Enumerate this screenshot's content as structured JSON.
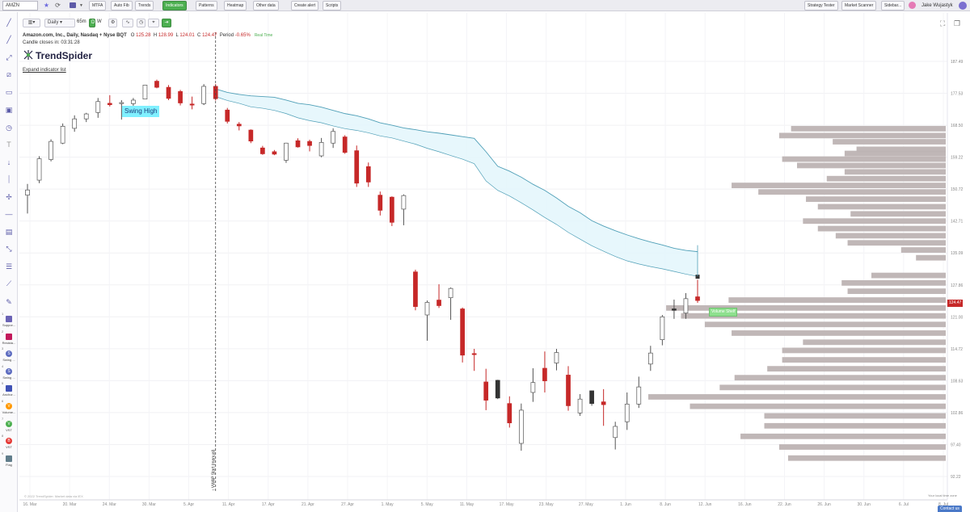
{
  "topbar": {
    "symbol": "AMZN",
    "buttons": [
      "MTFA",
      "Auto Fib",
      "Trends",
      "Indicators",
      "Patterns",
      "Heatmap",
      "Other data",
      "Create alert",
      "Scripts"
    ],
    "right_buttons": [
      "Strategy Tester",
      "Market Scanner",
      "Sidebar..."
    ],
    "user": "Jake Wujastyk",
    "active_button": "Indicators"
  },
  "chart_toolbar": {
    "interval": "Daily",
    "timeframe": "65m",
    "d_label": "D",
    "w_label": "W"
  },
  "info": {
    "name": "Amazon.com, Inc., Daily, Nasdaq + Nyse BQT",
    "open_label": "O",
    "open": "125.28",
    "high_label": "H",
    "high": "128.99",
    "low_label": "L",
    "low": "124.01",
    "close_label": "C",
    "close": "124.47",
    "period_label": "Period",
    "period": "-0.65%",
    "realtime": "Real Time",
    "candle_closes": "Candle closes in: 03:31:28"
  },
  "brand": "TrendSpider",
  "expand_link": "Expand indicator list",
  "annotations": {
    "swing_high": "Swing High",
    "volume_shelf": "Volume Shelf",
    "vwap_label": "↑ VWAP Start (manual)"
  },
  "price_tag": "124.47",
  "footer": {
    "copyright": "© 2022 TrendSpider. Market data via IEX",
    "timezone": "Your local time zone",
    "contact": "Contact us"
  },
  "left_tools": [
    {
      "num": "1",
      "letter": "",
      "label": "Suppor...",
      "color": "#6a62b5"
    },
    {
      "num": "2",
      "letter": "",
      "label": "Resista...",
      "color": "#c2185b"
    },
    {
      "num": "3",
      "letter": "S",
      "label": "Swing ...",
      "color": "#5c6bc0"
    },
    {
      "num": "4",
      "letter": "S",
      "label": "Swing ...",
      "color": "#5c6bc0"
    },
    {
      "num": "5",
      "letter": "",
      "label": "Anchor...",
      "color": "#3f51b5"
    },
    {
      "num": "6",
      "letter": "V",
      "label": "Volume...",
      "color": "#ff9800"
    },
    {
      "num": "7",
      "letter": "V",
      "label": "VST",
      "color": "#4caf50"
    },
    {
      "num": "8",
      "letter": "B",
      "label": "VST",
      "color": "#e53935"
    },
    {
      "num": "9",
      "letter": "",
      "label": "Flag",
      "color": "#607d8b"
    }
  ],
  "colors": {
    "up_candle": "#ffffff",
    "down_candle": "#c62828",
    "wick": "#555555",
    "band_fill": "#e3f6fb",
    "band_line": "#4f9fb7",
    "volume_profile": "#bdb3b3",
    "accent": "#4caf50"
  },
  "chart_data": {
    "type": "candlestick",
    "y_axis_ticks": [
      "187.49",
      "177.53",
      "168.50",
      "159.22",
      "150.72",
      "142.71",
      "135.09",
      "127.86",
      "121.00",
      "114.72",
      "108.63",
      "102.86",
      "97.40",
      "92.22"
    ],
    "x_axis_ticks": [
      "16. Mar",
      "20. Mar",
      "24. Mar",
      "30. Mar",
      "5. Apr",
      "11. Apr",
      "17. Apr",
      "21. Apr",
      "27. Apr",
      "1. May",
      "5. May",
      "11. May",
      "17. May",
      "23. May",
      "27. May",
      "1. Jun",
      "8. Jun",
      "12. Jun",
      "16. Jun",
      "22. Jun",
      "26. Jun",
      "30. Jun",
      "6. Jul",
      "8. Jul"
    ],
    "candles": [
      {
        "o": 150.5,
        "h": 152.1,
        "l": 144.6,
        "c": 149.2,
        "dir": "up"
      },
      {
        "o": 153.1,
        "h": 159.5,
        "l": 152.3,
        "c": 158.8,
        "dir": "up"
      },
      {
        "o": 158.6,
        "h": 164.4,
        "l": 158.1,
        "c": 163.8,
        "dir": "up"
      },
      {
        "o": 163.3,
        "h": 169.0,
        "l": 163.0,
        "c": 168.2,
        "dir": "up"
      },
      {
        "o": 167.6,
        "h": 171.3,
        "l": 166.6,
        "c": 170.3,
        "dir": "up"
      },
      {
        "o": 170.3,
        "h": 172.0,
        "l": 169.4,
        "c": 171.7,
        "dir": "up"
      },
      {
        "o": 172.1,
        "h": 176.2,
        "l": 170.6,
        "c": 175.2,
        "dir": "up"
      },
      {
        "o": 174.7,
        "h": 177.0,
        "l": 173.8,
        "c": 174.3,
        "dir": "down"
      },
      {
        "o": 174.9,
        "h": 175.6,
        "l": 170.1,
        "c": 174.8,
        "dir": "up"
      },
      {
        "o": 174.6,
        "h": 176.2,
        "l": 173.9,
        "c": 175.6,
        "dir": "up"
      },
      {
        "o": 175.9,
        "h": 180.2,
        "l": 175.9,
        "c": 180.1,
        "dir": "up"
      },
      {
        "o": 181.3,
        "h": 181.8,
        "l": 179.1,
        "c": 179.4,
        "dir": "down"
      },
      {
        "o": 179.4,
        "h": 180.1,
        "l": 175.6,
        "c": 176.1,
        "dir": "down"
      },
      {
        "o": 178.1,
        "h": 178.6,
        "l": 174.1,
        "c": 174.8,
        "dir": "down"
      },
      {
        "o": 174.2,
        "h": 176.6,
        "l": 173.0,
        "c": 174.5,
        "dir": "down"
      },
      {
        "o": 174.6,
        "h": 180.4,
        "l": 174.2,
        "c": 179.7,
        "dir": "up"
      },
      {
        "o": 179.7,
        "h": 180.4,
        "l": 175.5,
        "c": 176.0,
        "dir": "down"
      },
      {
        "o": 172.8,
        "h": 173.4,
        "l": 169.0,
        "c": 169.6,
        "dir": "down"
      },
      {
        "o": 168.8,
        "h": 169.4,
        "l": 167.0,
        "c": 168.3,
        "dir": "down"
      },
      {
        "o": 167.1,
        "h": 167.3,
        "l": 163.3,
        "c": 163.9,
        "dir": "down"
      },
      {
        "o": 161.9,
        "h": 162.5,
        "l": 159.9,
        "c": 160.2,
        "dir": "down"
      },
      {
        "o": 160.8,
        "h": 161.3,
        "l": 159.8,
        "c": 160.1,
        "dir": "down"
      },
      {
        "o": 158.4,
        "h": 163.4,
        "l": 157.7,
        "c": 163.3,
        "dir": "up"
      },
      {
        "o": 164.0,
        "h": 164.7,
        "l": 162.0,
        "c": 162.2,
        "dir": "down"
      },
      {
        "o": 163.8,
        "h": 164.3,
        "l": 160.9,
        "c": 162.6,
        "dir": "down"
      },
      {
        "o": 159.6,
        "h": 164.8,
        "l": 159.2,
        "c": 163.5,
        "dir": "up"
      },
      {
        "o": 166.7,
        "h": 167.6,
        "l": 161.9,
        "c": 163.3,
        "dir": "up"
      },
      {
        "o": 165.1,
        "h": 165.6,
        "l": 160.2,
        "c": 160.6,
        "dir": "down"
      },
      {
        "o": 161.1,
        "h": 162.6,
        "l": 151.3,
        "c": 152.3,
        "dir": "down"
      },
      {
        "o": 156.7,
        "h": 157.8,
        "l": 151.3,
        "c": 152.6,
        "dir": "down"
      },
      {
        "o": 149.2,
        "h": 150.1,
        "l": 144.1,
        "c": 145.4,
        "dir": "down"
      },
      {
        "o": 148.7,
        "h": 148.9,
        "l": 141.5,
        "c": 142.4,
        "dir": "down"
      },
      {
        "o": 145.7,
        "h": 149.4,
        "l": 141.7,
        "c": 149.1,
        "dir": "up"
      },
      {
        "o": 130.8,
        "h": 131.3,
        "l": 122.4,
        "c": 123.2,
        "dir": "down"
      },
      {
        "o": 121.4,
        "h": 124.5,
        "l": 116.3,
        "c": 124.1,
        "dir": "up"
      },
      {
        "o": 124.6,
        "h": 128.0,
        "l": 122.9,
        "c": 123.4,
        "dir": "down"
      },
      {
        "o": 125.1,
        "h": 127.3,
        "l": 120.4,
        "c": 127.1,
        "dir": "up"
      },
      {
        "o": 122.7,
        "h": 123.0,
        "l": 112.1,
        "c": 113.5,
        "dir": "down"
      },
      {
        "o": 113.8,
        "h": 114.7,
        "l": 110.5,
        "c": 113.6,
        "dir": "down"
      },
      {
        "o": 108.4,
        "h": 110.9,
        "l": 103.3,
        "c": 105.1,
        "dir": "down"
      },
      {
        "o": 108.7,
        "h": 108.8,
        "l": 105.3,
        "c": 105.5,
        "dir": "black"
      },
      {
        "o": 104.5,
        "h": 105.8,
        "l": 100.3,
        "c": 101.1,
        "dir": "down"
      },
      {
        "o": 103.3,
        "h": 104.5,
        "l": 96.4,
        "c": 97.6,
        "dir": "up"
      },
      {
        "o": 106.5,
        "h": 111.0,
        "l": 104.8,
        "c": 108.3,
        "dir": "up"
      },
      {
        "o": 108.6,
        "h": 114.2,
        "l": 106.5,
        "c": 111.0,
        "dir": "down"
      },
      {
        "o": 112.0,
        "h": 114.7,
        "l": 110.6,
        "c": 114.0,
        "dir": "up"
      },
      {
        "o": 109.7,
        "h": 111.4,
        "l": 103.2,
        "c": 104.1,
        "dir": "down"
      },
      {
        "o": 102.8,
        "h": 106.2,
        "l": 102.3,
        "c": 105.3,
        "dir": "up"
      },
      {
        "o": 106.8,
        "h": 106.8,
        "l": 104.1,
        "c": 104.5,
        "dir": "black"
      },
      {
        "o": 104.8,
        "h": 107.1,
        "l": 100.6,
        "c": 104.3,
        "dir": "down"
      },
      {
        "o": 98.6,
        "h": 101.3,
        "l": 96.6,
        "c": 100.5,
        "dir": "up"
      },
      {
        "o": 101.3,
        "h": 106.5,
        "l": 99.9,
        "c": 104.4,
        "dir": "up"
      },
      {
        "o": 104.4,
        "h": 109.4,
        "l": 103.7,
        "c": 107.5,
        "dir": "up"
      },
      {
        "o": 111.8,
        "h": 115.3,
        "l": 110.5,
        "c": 113.9,
        "dir": "up"
      },
      {
        "o": 116.5,
        "h": 121.4,
        "l": 115.4,
        "c": 121.0,
        "dir": "up"
      },
      {
        "o": 122.4,
        "h": 124.7,
        "l": 120.6,
        "c": 122.7,
        "dir": "black"
      },
      {
        "o": 121.8,
        "h": 126.1,
        "l": 120.6,
        "c": 124.9,
        "dir": "up"
      },
      {
        "o": 125.3,
        "h": 129.0,
        "l": 124.0,
        "c": 124.5,
        "dir": "down"
      }
    ],
    "volume_profile": [
      {
        "price": 167.5,
        "len": 0.52
      },
      {
        "price": 165.5,
        "len": 0.56
      },
      {
        "price": 163.7,
        "len": 0.38
      },
      {
        "price": 161.5,
        "len": 0.3
      },
      {
        "price": 160.3,
        "len": 0.34
      },
      {
        "price": 158.7,
        "len": 0.55
      },
      {
        "price": 157.0,
        "len": 0.5
      },
      {
        "price": 155.3,
        "len": 0.34
      },
      {
        "price": 153.5,
        "len": 0.4
      },
      {
        "price": 151.7,
        "len": 0.72
      },
      {
        "price": 150.0,
        "len": 0.63
      },
      {
        "price": 148.2,
        "len": 0.47
      },
      {
        "price": 146.3,
        "len": 0.43
      },
      {
        "price": 144.5,
        "len": 0.32
      },
      {
        "price": 142.7,
        "len": 0.48
      },
      {
        "price": 140.9,
        "len": 0.43
      },
      {
        "price": 139.2,
        "len": 0.37
      },
      {
        "price": 137.5,
        "len": 0.33
      },
      {
        "price": 135.8,
        "len": 0.15
      },
      {
        "price": 134.0,
        "len": 0.1
      },
      {
        "price": 130.0,
        "len": 0.25
      },
      {
        "price": 128.3,
        "len": 0.35
      },
      {
        "price": 126.5,
        "len": 0.33
      },
      {
        "price": 124.6,
        "len": 0.73
      },
      {
        "price": 122.9,
        "len": 0.94
      },
      {
        "price": 121.2,
        "len": 0.89
      },
      {
        "price": 119.5,
        "len": 0.81
      },
      {
        "price": 117.8,
        "len": 0.72
      },
      {
        "price": 116.0,
        "len": 0.48
      },
      {
        "price": 114.4,
        "len": 0.55
      },
      {
        "price": 112.6,
        "len": 0.55
      },
      {
        "price": 110.9,
        "len": 0.6
      },
      {
        "price": 109.2,
        "len": 0.71
      },
      {
        "price": 107.4,
        "len": 0.76
      },
      {
        "price": 105.7,
        "len": 1.0
      },
      {
        "price": 104.0,
        "len": 0.86
      },
      {
        "price": 102.3,
        "len": 0.61
      },
      {
        "price": 100.6,
        "len": 0.61
      },
      {
        "price": 98.8,
        "len": 0.69
      },
      {
        "price": 97.0,
        "len": 0.56
      },
      {
        "price": 95.2,
        "len": 0.53
      }
    ],
    "band_upper": [
      178.9,
      177.8,
      177.2,
      176.8,
      176.6,
      176.4,
      175.6,
      174.7,
      174.3,
      173.6,
      172.7,
      171.8,
      171.2,
      170.3,
      169.2,
      168.5,
      167.7,
      167.2,
      166.6,
      166.2,
      165.7,
      165.2,
      164.7,
      160.8,
      156.8,
      155.5,
      153.9,
      152.0,
      150.4,
      148.5,
      146.4,
      144.8,
      142.8,
      141.5,
      140.4,
      139.4,
      138.5,
      137.7,
      137.0,
      136.2,
      135.7,
      135.4
    ],
    "band_lower": [
      176.6,
      175.5,
      174.7,
      173.7,
      173.3,
      172.7,
      171.8,
      170.6,
      169.8,
      169.2,
      168.3,
      167.5,
      167.0,
      166.3,
      165.4,
      164.8,
      163.9,
      163.0,
      161.8,
      160.8,
      159.7,
      158.7,
      157.5,
      152.9,
      150.4,
      149.0,
      147.3,
      145.5,
      143.6,
      141.9,
      140.0,
      138.4,
      136.8,
      135.5,
      134.3,
      133.3,
      132.6,
      132.0,
      131.5,
      130.9,
      130.3,
      129.8
    ],
    "ylim": [
      92.22,
      187.49
    ]
  }
}
